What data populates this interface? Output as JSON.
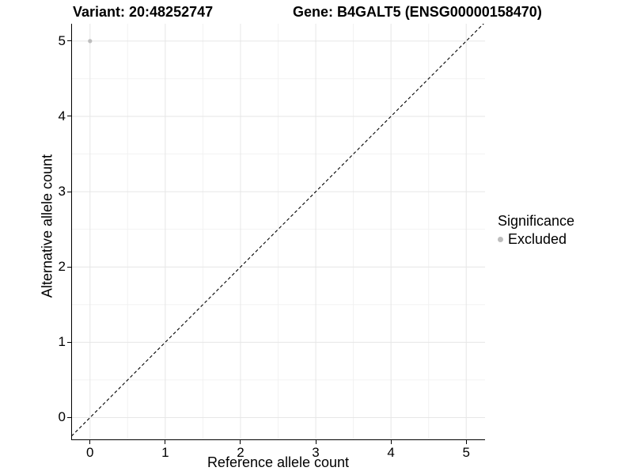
{
  "header": {
    "variant_title": "Variant: 20:48252747",
    "gene_title": "Gene: B4GALT5 (ENSG00000158470)"
  },
  "axes": {
    "x_label": "Reference allele count",
    "y_label": "Alternative allele count"
  },
  "legend": {
    "title": "Significance",
    "items": [
      {
        "label": "Excluded",
        "color": "#bdbdbd"
      }
    ]
  },
  "chart_data": {
    "type": "scatter",
    "title": "Variant: 20:48252747",
    "subtitle": "Gene: B4GALT5 (ENSG00000158470)",
    "xlabel": "Reference allele count",
    "ylabel": "Alternative allele count",
    "xlim": [
      -0.25,
      5.25
    ],
    "ylim": [
      -0.3,
      5.23
    ],
    "x_ticks": [
      0,
      1,
      2,
      3,
      4,
      5
    ],
    "y_ticks": [
      0,
      1,
      2,
      3,
      4,
      5
    ],
    "grid": "major and minor gridlines on, white background",
    "legend_position": "right",
    "legend_title": "Significance",
    "series": [
      {
        "name": "Excluded",
        "color": "#bdbdbd",
        "points": [
          {
            "x": 0,
            "y": 5
          }
        ]
      }
    ],
    "reference_line": {
      "type": "identity y=x",
      "style": "dashed",
      "color": "#000000"
    }
  },
  "style": {
    "grid_major_color": "#e6e6e6",
    "grid_minor_color": "#f2f2f2",
    "axis_line_color": "#000000",
    "point_color": "#bdbdbd",
    "background": "#ffffff"
  }
}
